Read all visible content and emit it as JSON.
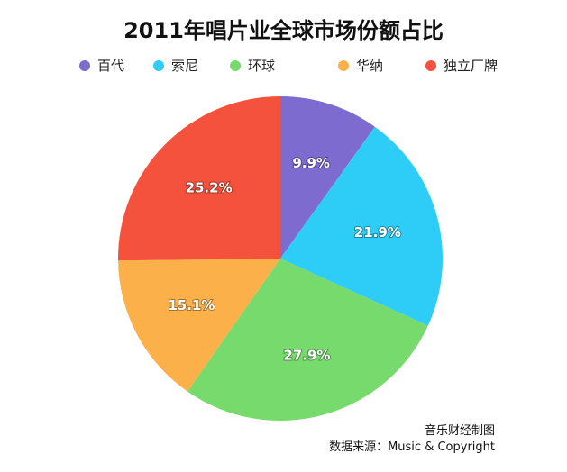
{
  "chart_data": {
    "type": "pie",
    "title": "2011年唱片业全球市场份额占比",
    "slices": [
      {
        "label": "百代",
        "value": 9.9,
        "value_label": "9.9%",
        "color": "#7e6bd0"
      },
      {
        "label": "索尼",
        "value": 21.9,
        "value_label": "21.9%",
        "color": "#2ecdf8"
      },
      {
        "label": "环球",
        "value": 27.9,
        "value_label": "27.9%",
        "color": "#77da6c"
      },
      {
        "label": "华纳",
        "value": 15.1,
        "value_label": "15.1%",
        "color": "#fbb04a"
      },
      {
        "label": "独立厂牌",
        "value": 25.2,
        "value_label": "25.2%",
        "color": "#f4523c"
      }
    ],
    "legend_placement": "top"
  },
  "footer": {
    "line1": "音乐财经制图",
    "line2": "数据来源：Music & Copyright"
  }
}
